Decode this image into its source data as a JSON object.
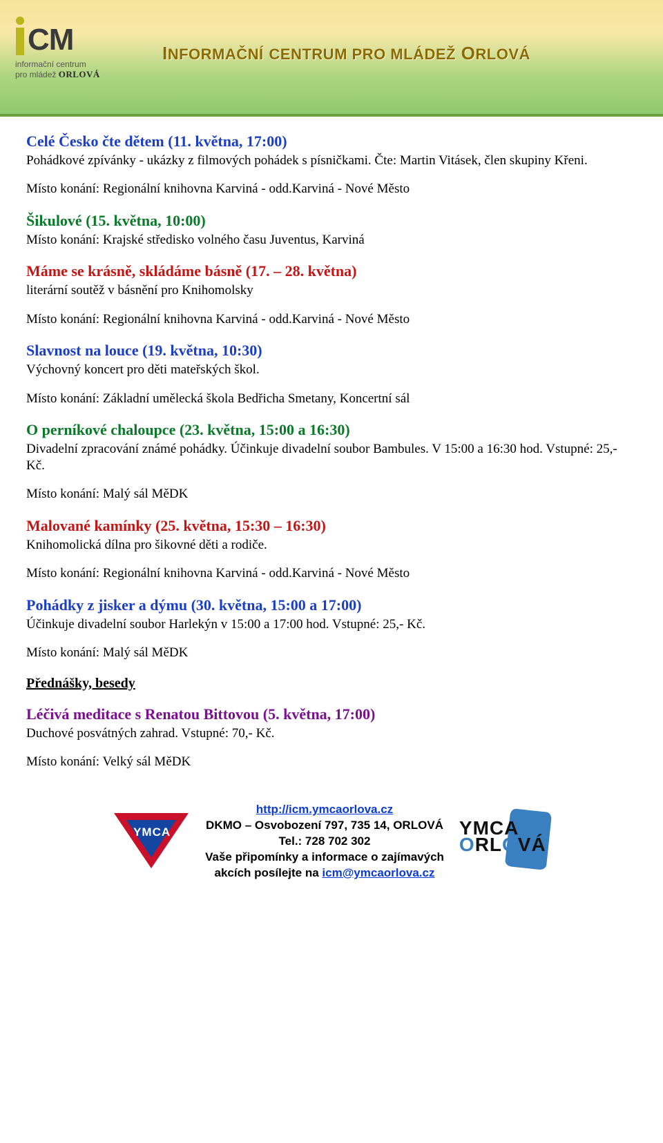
{
  "banner": {
    "logo_sub_line1": "informační centrum",
    "logo_sub_line2": "pro mládež",
    "logo_sub_orl": "ORLOVÁ",
    "logo_cm": "CM",
    "title_html": "I<span class='small'>NFORMAČNÍ</span> <span class='small'>CENTRUM PRO MLÁDEŽ</span> O<span class='small'>RLOVÁ</span>",
    "title_plain": "INFORMAČNÍ CENTRUM PRO MLÁDEŽ ORLOVÁ"
  },
  "colors": {
    "blue": "#1a3ec7",
    "green": "#0a7a2a",
    "red": "#c41515",
    "purple": "#7a1090",
    "link": "#0b3bd6",
    "banner_title": "#8b6b00"
  },
  "events": [
    {
      "title": "Celé Česko čte dětem (11. května, 17:00)",
      "title_color": "blue",
      "desc": "Pohádkové zpívánky - ukázky z filmových pohádek s písničkami. Čte: Martin Vitásek, člen skupiny Křeni.",
      "venue": "Místo konání: Regionální knihovna Karviná - odd.Karviná - Nové Město"
    },
    {
      "title": "Šikulové (15. května, 10:00)",
      "title_color": "green",
      "venue": "Místo konání: Krajské středisko volného času Juventus, Karviná",
      "tight": true
    },
    {
      "title": "Máme se krásně, skládáme básně (17. – 28. května)",
      "title_color": "red",
      "desc": "literární soutěž v básnění pro Knihomolsky",
      "venue": "Místo konání: Regionální knihovna Karviná - odd.Karviná - Nové Město"
    },
    {
      "title": "Slavnost na louce (19. května, 10:30)",
      "title_color": "blue",
      "desc": "Výchovný koncert pro děti mateřských škol.",
      "venue": "Místo konání: Základní umělecká škola Bedřicha Smetany, Koncertní sál"
    },
    {
      "title": "O perníkové chaloupce (23. května, 15:00 a 16:30)",
      "title_color": "green",
      "desc": "Divadelní zpracování známé pohádky. Účinkuje divadelní soubor Bambules. V 15:00 a 16:30 hod. Vstupné: 25,- Kč.",
      "venue": "Místo konání: Malý sál MěDK"
    },
    {
      "title": "Malované kamínky (25. května, 15:30 – 16:30)",
      "title_color": "red",
      "desc": "Knihomolická dílna pro šikovné děti a rodiče.",
      "venue": "Místo konání: Regionální knihovna Karviná - odd.Karviná - Nové Město"
    },
    {
      "title": "Pohádky z jisker a dýmu (30. května, 15:00 a 17:00)",
      "title_color": "blue",
      "desc": "Účinkuje divadelní soubor Harlekýn v 15:00 a 17:00 hod. Vstupné: 25,- Kč.",
      "venue": "Místo konání: Malý sál MěDK"
    }
  ],
  "section_heading": "Přednášky, besedy",
  "lecture": {
    "title": "Léčivá meditace s Renatou Bittovou (5. května, 17:00)",
    "title_color": "purple",
    "desc": "Duchové posvátných zahrad. Vstupné: 70,- Kč.",
    "venue": "Místo konání: Velký sál MěDK"
  },
  "footer": {
    "url_text": "http://icm.ymcaorlova.cz",
    "line2": "DKMO – Osvobození 797, 735 14, ORLOVÁ",
    "line3": "Tel.: 728 702 302",
    "line4_pre": "Vaše připomínky a informace o zajímavých",
    "line5_pre": "akcích posílejte na ",
    "email": "icm@ymcaorlova.cz",
    "ymca_left": "YMCA",
    "ymca_right_l1": "YMCA",
    "ymca_right_l2a": "RL",
    "ymca_right_l2b": "O",
    "ymca_right_l2c": "VÁ"
  }
}
